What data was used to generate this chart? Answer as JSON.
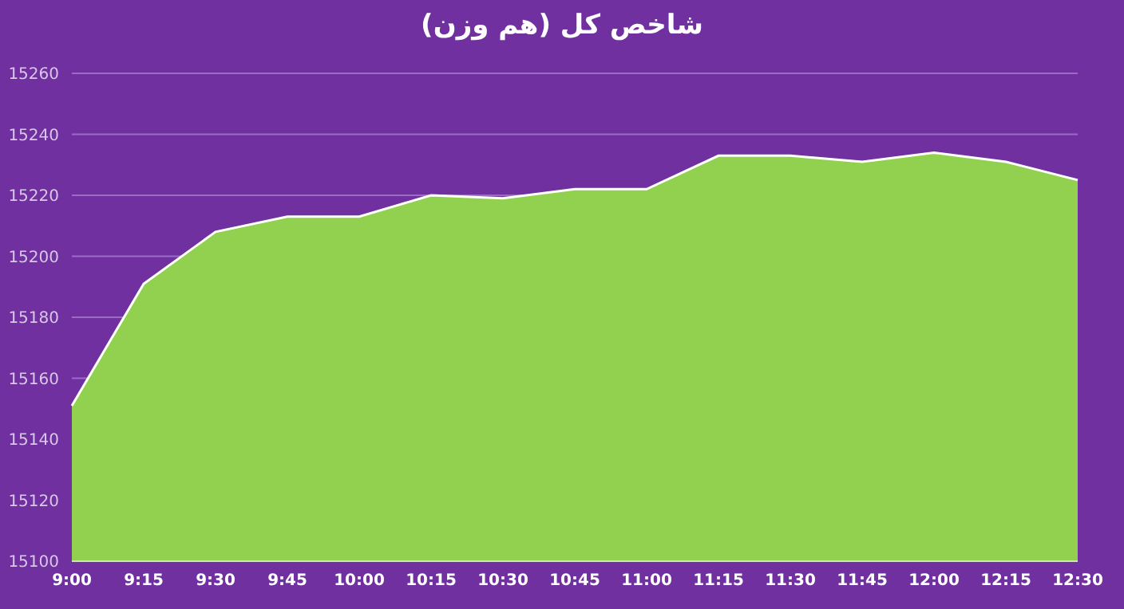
{
  "chart_data": {
    "type": "area",
    "title": "شاخص کل (هم وزن)",
    "categories": [
      "9:00",
      "9:15",
      "9:30",
      "9:45",
      "10:00",
      "10:15",
      "10:30",
      "10:45",
      "11:00",
      "11:15",
      "11:30",
      "11:45",
      "12:00",
      "12:15",
      "12:30"
    ],
    "series": [
      {
        "color": "#92d050",
        "values": [
          15151,
          15191,
          15208,
          15213,
          15213,
          15220,
          15219,
          15222,
          15222,
          15233,
          15233,
          15231,
          15234,
          15231,
          15225
        ]
      }
    ],
    "ylim": [
      15100,
      15260
    ],
    "yticks": [
      15100,
      15120,
      15140,
      15160,
      15180,
      15200,
      15220,
      15240,
      15260
    ],
    "grid": "y",
    "legend": false
  }
}
